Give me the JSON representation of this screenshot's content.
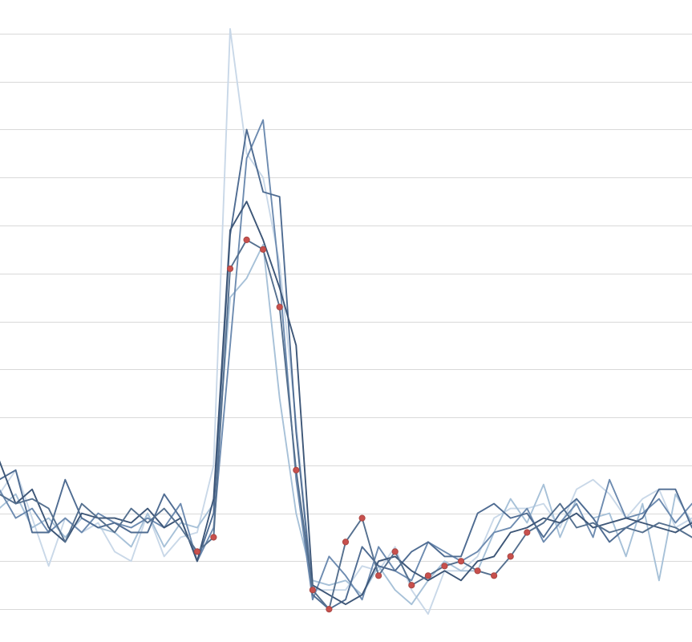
{
  "chart_data": {
    "type": "line",
    "title": "",
    "xlabel": "",
    "ylabel": "",
    "grid": true,
    "legend": "none",
    "xlim": [
      0,
      42
    ],
    "ylim": [
      0,
      13
    ],
    "gridlines_y": [
      0.5,
      1.5,
      2.5,
      3.5,
      4.5,
      5.5,
      6.5,
      7.5,
      8.5,
      9.5,
      10.5,
      11.5,
      12.5
    ],
    "x": [
      0,
      1,
      2,
      3,
      4,
      5,
      6,
      7,
      8,
      9,
      10,
      11,
      12,
      13,
      14,
      15,
      16,
      17,
      18,
      19,
      20,
      21,
      22,
      23,
      24,
      25,
      26,
      27,
      28,
      29,
      30,
      31,
      32,
      33,
      34,
      35,
      36,
      37,
      38,
      39,
      40,
      41,
      42
    ],
    "colors": {
      "series": [
        "#3d5677",
        "#4f6c92",
        "#6d8bb0",
        "#a7c1d8",
        "#c9d8e8",
        "#55708f"
      ],
      "marker": "#c8504d",
      "grid": "#d9d9d9"
    },
    "series": [
      {
        "color": "#3d5677",
        "values": [
          3.6,
          2.7,
          3.0,
          2.2,
          1.9,
          2.5,
          2.4,
          2.4,
          2.3,
          2.6,
          2.2,
          2.4,
          1.5,
          2.8,
          8.4,
          9.0,
          8.2,
          7.2,
          6.0,
          1.0,
          0.8,
          0.6,
          0.8,
          1.5,
          1.6,
          1.3,
          1.1,
          1.3,
          1.1,
          1.5,
          1.6,
          2.1,
          2.2,
          2.4,
          2.3,
          2.5,
          2.2,
          2.3,
          2.4,
          2.3,
          2.2,
          2.1,
          2.3
        ]
      },
      {
        "color": "#4f6c92",
        "values": [
          3.2,
          3.4,
          2.1,
          2.1,
          3.2,
          2.4,
          2.2,
          2.3,
          2.1,
          2.1,
          2.9,
          2.4,
          1.5,
          2.5,
          8.3,
          10.5,
          9.2,
          9.1,
          4.2,
          0.8,
          0.5,
          0.7,
          1.8,
          1.4,
          1.3,
          1.7,
          1.9,
          1.6,
          1.6,
          2.5,
          2.7,
          2.4,
          2.5,
          2.0,
          2.5,
          2.8,
          2.4,
          1.9,
          2.2,
          2.4,
          3.0,
          3.0,
          2.2
        ]
      },
      {
        "color": "#6d8bb0",
        "values": [
          3.0,
          2.4,
          2.6,
          2.1,
          2.4,
          2.1,
          2.5,
          2.3,
          2.2,
          2.4,
          2.2,
          2.7,
          1.5,
          2.2,
          6.0,
          9.9,
          10.7,
          7.4,
          3.2,
          0.7,
          1.6,
          1.2,
          0.7,
          1.8,
          1.3,
          1.1,
          1.9,
          1.7,
          1.5,
          1.7,
          2.1,
          2.2,
          2.6,
          1.9,
          2.3,
          2.7,
          2.0,
          3.2,
          2.4,
          2.5,
          2.8,
          2.3,
          2.7
        ]
      },
      {
        "color": "#a7c1d8",
        "values": [
          2.6,
          2.9,
          2.2,
          2.4,
          2.0,
          2.4,
          2.2,
          2.1,
          1.8,
          2.5,
          1.8,
          2.3,
          2.2,
          2.7,
          7.0,
          7.4,
          8.1,
          4.9,
          2.5,
          1.1,
          1.0,
          1.1,
          0.8,
          1.4,
          0.9,
          0.6,
          1.1,
          1.5,
          1.3,
          1.3,
          2.1,
          2.8,
          2.3,
          3.1,
          2.0,
          2.8,
          2.4,
          2.5,
          1.6,
          2.7,
          1.1,
          2.9,
          2.3
        ]
      },
      {
        "color": "#c9d8e8",
        "values": [
          2.9,
          3.4,
          2.4,
          1.4,
          2.4,
          2.1,
          2.3,
          1.7,
          1.5,
          2.5,
          1.6,
          2.0,
          2.1,
          3.5,
          12.6,
          10.0,
          9.5,
          7.7,
          4.4,
          0.9,
          0.9,
          0.9,
          1.4,
          1.3,
          1.8,
          0.9,
          0.4,
          1.3,
          1.3,
          1.6,
          2.4,
          2.6,
          2.6,
          2.7,
          2.2,
          3.0,
          3.2,
          2.9,
          2.4,
          2.8,
          3.0,
          2.2,
          2.4
        ]
      },
      {
        "color": "#55708f",
        "values": [
          2.9,
          2.7,
          2.8,
          2.6,
          1.9,
          2.7,
          2.4,
          2.1,
          2.6,
          2.3,
          2.6,
          2.2,
          1.7,
          2.0,
          7.6,
          8.2,
          8.0,
          6.8,
          3.4,
          0.9,
          0.5,
          1.9,
          2.4,
          1.2,
          1.7,
          1.0,
          1.2,
          1.4,
          1.5,
          1.3,
          1.2,
          1.6,
          2.1,
          2.3,
          2.7,
          2.2,
          2.3,
          2.1,
          2.2,
          2.1,
          2.3,
          2.2,
          2.0
        ]
      }
    ],
    "highlight_series": 5,
    "highlight_range": [
      12,
      32
    ]
  }
}
